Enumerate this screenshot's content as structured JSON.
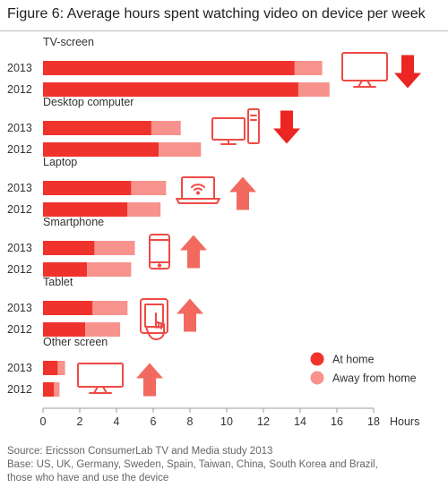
{
  "figure": {
    "title": "Figure 6: Average hours spent watching video on device per week"
  },
  "chart_data": {
    "type": "bar",
    "orientation": "horizontal",
    "stacked": true,
    "groups": [
      {
        "name": "TV-screen",
        "icon": "tv-icon",
        "trend": "down",
        "rows": [
          {
            "year": "2013",
            "at_home": 13.7,
            "away": 1.5
          },
          {
            "year": "2012",
            "at_home": 13.9,
            "away": 1.7
          }
        ]
      },
      {
        "name": "Desktop computer",
        "icon": "desktop-computer-icon",
        "trend": "down",
        "rows": [
          {
            "year": "2013",
            "at_home": 5.9,
            "away": 1.6
          },
          {
            "year": "2012",
            "at_home": 6.3,
            "away": 2.3
          }
        ]
      },
      {
        "name": "Laptop",
        "icon": "laptop-wifi-icon",
        "trend": "up",
        "rows": [
          {
            "year": "2013",
            "at_home": 4.8,
            "away": 1.9
          },
          {
            "year": "2012",
            "at_home": 4.6,
            "away": 1.8
          }
        ]
      },
      {
        "name": "Smartphone",
        "icon": "smartphone-icon",
        "trend": "up",
        "rows": [
          {
            "year": "2013",
            "at_home": 2.8,
            "away": 2.2
          },
          {
            "year": "2012",
            "at_home": 2.4,
            "away": 2.4
          }
        ]
      },
      {
        "name": "Tablet",
        "icon": "tablet-touch-icon",
        "trend": "up",
        "rows": [
          {
            "year": "2013",
            "at_home": 2.7,
            "away": 1.9
          },
          {
            "year": "2012",
            "at_home": 2.3,
            "away": 1.9
          }
        ]
      },
      {
        "name": "Other screen",
        "icon": "monitor-icon",
        "trend": "up",
        "rows": [
          {
            "year": "2013",
            "at_home": 0.8,
            "away": 0.4
          },
          {
            "year": "2012",
            "at_home": 0.6,
            "away": 0.3
          }
        ]
      }
    ],
    "series": [
      {
        "name": "At home",
        "color": "#f0322d"
      },
      {
        "name": "Away from home",
        "color": "#f7928c"
      }
    ],
    "xlim": [
      0,
      18
    ],
    "xticks": [
      "0",
      "2",
      "4",
      "6",
      "8",
      "10",
      "12",
      "14",
      "16",
      "18"
    ],
    "xlabel": "Hours",
    "legend_position": "bottom-right",
    "grid": false
  },
  "colors": {
    "arrow_down": "#ea2522",
    "arrow_up": "#f26a5f",
    "icon_stroke": "#ef4a45",
    "axis": "#9e9e9e"
  },
  "source": {
    "line1": "Source: Ericsson ConsumerLab TV and Media study 2013",
    "line2": "Base: US, UK, Germany, Sweden, Spain, Taiwan, China, South Korea and Brazil,",
    "line3": "those who have and use the device"
  }
}
